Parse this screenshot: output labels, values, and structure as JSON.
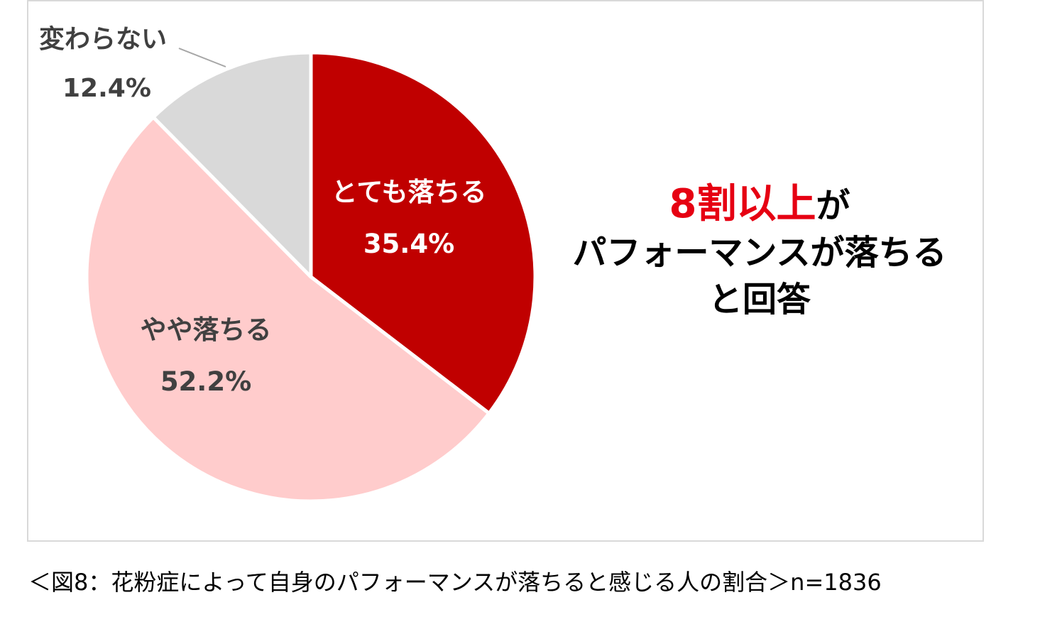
{
  "chart_data": {
    "type": "pie",
    "slices": [
      {
        "label": "とても落ちる",
        "value": 35.4,
        "value_label": "35.4%",
        "color": "#c00000"
      },
      {
        "label": "やや落ちる",
        "value": 52.2,
        "value_label": "52.2%",
        "color": "#ffcccc"
      },
      {
        "label": "変わらない",
        "value": 12.4,
        "value_label": "12.4%",
        "color": "#d9d9d9"
      }
    ]
  },
  "headline": {
    "accent": "8割以上",
    "accent_suffix": "が",
    "line2": "パフォーマンスが落ちる",
    "line3": "と回答",
    "accent_color": "#e60012"
  },
  "caption": "＜図8：花粉症によって自身のパフォーマンスが落ちると感じる人の割合＞n=1836"
}
